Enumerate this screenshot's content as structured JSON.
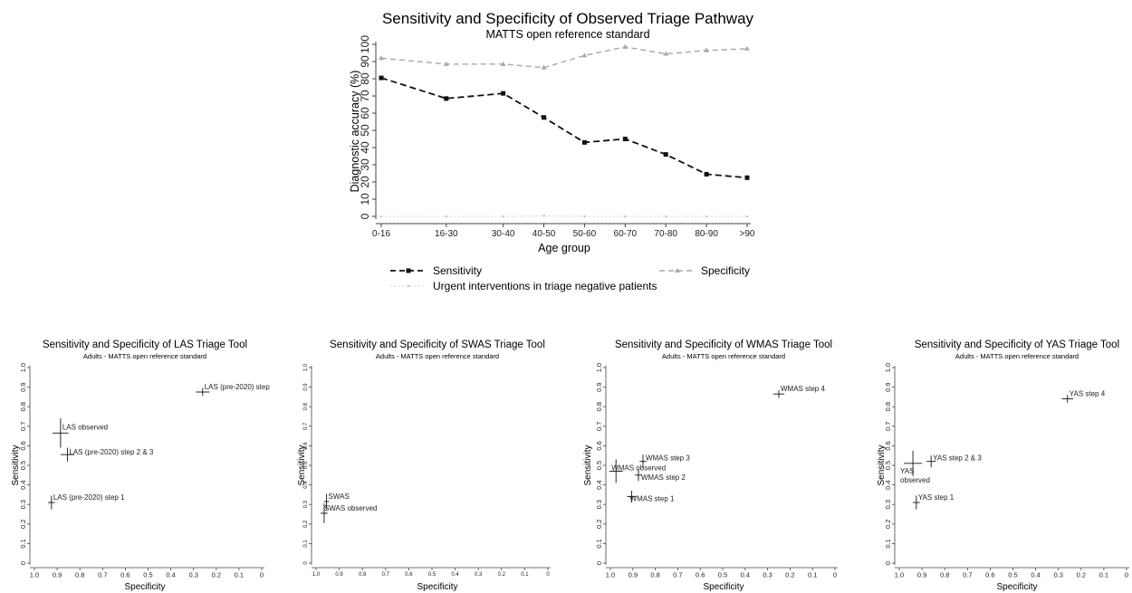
{
  "colors": {
    "ink": "#222222",
    "sensitivity": "#111111",
    "specificity": "#a9a9a9",
    "urgent": "#c8c8c8",
    "axis": "#444444"
  },
  "chart_data": [
    {
      "type": "line",
      "title": "Sensitivity and Specificity of Observed Triage Pathway",
      "subtitle": "MATTS open reference standard",
      "xlabel": "Age group",
      "ylabel": "Diagnostic accuracy (%)",
      "ylim": [
        0,
        100
      ],
      "yticks": [
        0,
        10,
        20,
        30,
        40,
        50,
        60,
        70,
        80,
        90,
        100
      ],
      "grid": false,
      "legend_position": "bottom",
      "categories": [
        "0-16",
        "16-30",
        "30-40",
        "40-50",
        "50-60",
        "60-70",
        "70-80",
        "80-90",
        ">90"
      ],
      "x_positions": [
        0,
        16,
        30,
        40,
        50,
        60,
        70,
        80,
        90
      ],
      "series": [
        {
          "name": "Sensitivity",
          "style": "dashed",
          "marker": "square",
          "color": "#111111",
          "values": [
            80.5,
            68.5,
            71.5,
            57.5,
            43,
            45,
            36,
            24.5,
            22.5
          ]
        },
        {
          "name": "Specificity",
          "style": "dashed",
          "marker": "triangle",
          "color": "#a9a9a9",
          "values": [
            92,
            88.5,
            88.5,
            86.5,
            93.5,
            98.5,
            94.5,
            96.5,
            97.5
          ]
        },
        {
          "name": "Urgent interventions in triage negative patients",
          "style": "dotted",
          "marker": "dot",
          "color": "#c8c8c8",
          "values": [
            0,
            0,
            0,
            0.4,
            0,
            0,
            0,
            0,
            0
          ]
        }
      ]
    },
    {
      "type": "scatter",
      "title": "Sensitivity and Specificity of LAS Triage Tool",
      "subtitle": "Adults - MATTS open reference standard",
      "xlabel": "Specificity",
      "ylabel": "Sensitivity",
      "xlim": [
        1.0,
        0
      ],
      "ylim": [
        0,
        1.0
      ],
      "x_reversed": true,
      "ticks": [
        "1.0",
        "0.9",
        "0.8",
        "0.7",
        "0.6",
        "0.5",
        "0.4",
        "0.3",
        "0.2",
        "0.1",
        "0"
      ],
      "points": [
        {
          "label": "LAS (pre-2020) step",
          "x": 0.26,
          "y": 0.875,
          "xerr": 0.03,
          "yerr": 0.02
        },
        {
          "label": "LAS observed",
          "x": 0.885,
          "y": 0.665,
          "xerr": 0.035,
          "yerr": 0.075
        },
        {
          "label": "LAS (pre-2020) step 2 & 3",
          "x": 0.855,
          "y": 0.555,
          "xerr": 0.03,
          "yerr": 0.035
        },
        {
          "label": "LAS (pre-2020) step 1",
          "x": 0.925,
          "y": 0.31,
          "xerr": 0.015,
          "yerr": 0.035
        }
      ]
    },
    {
      "type": "scatter",
      "title": "Sensitivity and Specificity of SWAS Triage Tool",
      "subtitle": "Adults - MATTS open reference standard",
      "xlabel": "Specificity",
      "ylabel": "Sensitivity",
      "xlim": [
        1.0,
        0
      ],
      "ylim": [
        0,
        1.0
      ],
      "x_reversed": true,
      "ticks": [
        "1.0",
        "0.9",
        "0.8",
        "0.7",
        "0.6",
        "0.5",
        "0.4",
        "0.3",
        "0.2",
        "0.1",
        "0"
      ],
      "points": [
        {
          "label": "SWAS",
          "x": 0.955,
          "y": 0.315,
          "xerr": 0.01,
          "yerr": 0.04
        },
        {
          "label": "SWAS observed",
          "x": 0.965,
          "y": 0.255,
          "xerr": 0.015,
          "yerr": 0.05
        }
      ]
    },
    {
      "type": "scatter",
      "title": "Sensitivity and Specificity of WMAS Triage Tool",
      "subtitle": "Adults - MATTS open reference standard",
      "xlabel": "Specificity",
      "ylabel": "Sensitivity",
      "xlim": [
        1.0,
        0
      ],
      "ylim": [
        0,
        1.0
      ],
      "x_reversed": true,
      "ticks": [
        "1.0",
        "0.9",
        "0.8",
        "0.7",
        "0.6",
        "0.5",
        "0.4",
        "0.3",
        "0.2",
        "0.1",
        "0"
      ],
      "points": [
        {
          "label": "WMAS step 4",
          "x": 0.25,
          "y": 0.865,
          "xerr": 0.025,
          "yerr": 0.02
        },
        {
          "label": "WMAS step 3",
          "x": 0.855,
          "y": 0.52,
          "xerr": 0.015,
          "yerr": 0.035
        },
        {
          "label": "WMAS observed",
          "x": 0.975,
          "y": 0.47,
          "xerr": 0.03,
          "yerr": 0.06
        },
        {
          "label": "WMAS step 2",
          "x": 0.875,
          "y": 0.45,
          "xerr": 0.015,
          "yerr": 0.03
        },
        {
          "label": "WMAS step 1",
          "x": 0.905,
          "y": 0.34,
          "xerr": 0.02,
          "yerr": 0.03
        }
      ]
    },
    {
      "type": "scatter",
      "title": "Sensitivity and Specificity of YAS Triage Tool",
      "subtitle": "Adults - MATTS open reference standard",
      "xlabel": "Specificity",
      "ylabel": "Sensitivity",
      "xlim": [
        1.0,
        0
      ],
      "ylim": [
        0,
        1.0
      ],
      "x_reversed": true,
      "ticks": [
        "1.0",
        "0.9",
        "0.8",
        "0.7",
        "0.6",
        "0.5",
        "0.4",
        "0.3",
        "0.2",
        "0.1",
        "0"
      ],
      "points": [
        {
          "label": "YAS step 4",
          "x": 0.26,
          "y": 0.84,
          "xerr": 0.025,
          "yerr": 0.02
        },
        {
          "label": "YAS step 2 & 3",
          "x": 0.86,
          "y": 0.52,
          "xerr": 0.02,
          "yerr": 0.03
        },
        {
          "label": "YAS observed",
          "x": 0.94,
          "y": 0.51,
          "xerr": 0.04,
          "yerr": 0.065
        },
        {
          "label": "YAS step 1",
          "x": 0.925,
          "y": 0.31,
          "xerr": 0.015,
          "yerr": 0.035
        }
      ]
    }
  ]
}
